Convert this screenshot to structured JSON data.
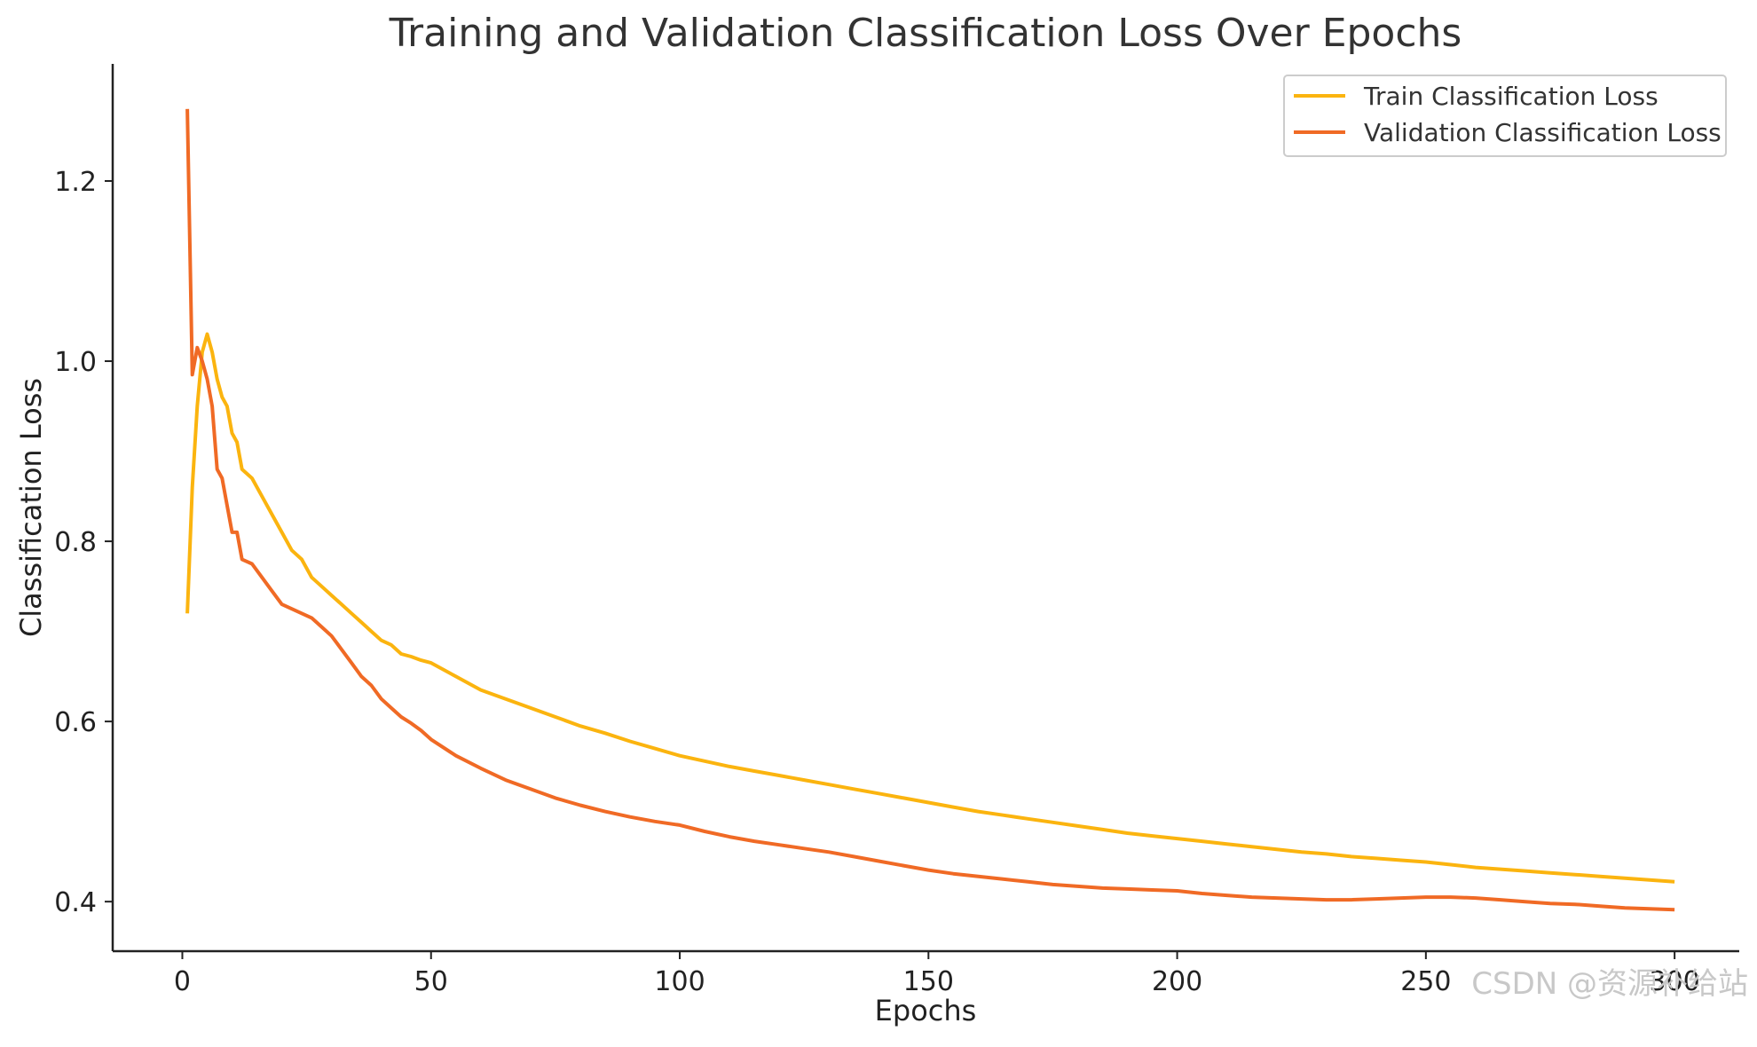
{
  "chart_data": {
    "type": "line",
    "title": "Training and Validation Classification Loss Over Epochs",
    "xlabel": "Epochs",
    "ylabel": "Classification Loss",
    "xlim": [
      -14,
      313
    ],
    "ylim": [
      0.345,
      1.33
    ],
    "xticks": [
      0,
      50,
      100,
      150,
      200,
      250,
      300
    ],
    "yticks": [
      0.4,
      0.6,
      0.8,
      1.0,
      1.2
    ],
    "ytick_labels": [
      "0.4",
      "0.6",
      "0.8",
      "1.0",
      "1.2"
    ],
    "grid": false,
    "legend_position": "top-right",
    "series": [
      {
        "name": "Train Classification Loss",
        "color": "#FBB40F",
        "points": [
          [
            1,
            0.72
          ],
          [
            2,
            0.86
          ],
          [
            3,
            0.95
          ],
          [
            4,
            1.01
          ],
          [
            5,
            1.03
          ],
          [
            6,
            1.01
          ],
          [
            7,
            0.98
          ],
          [
            8,
            0.96
          ],
          [
            9,
            0.95
          ],
          [
            10,
            0.92
          ],
          [
            11,
            0.91
          ],
          [
            12,
            0.88
          ],
          [
            14,
            0.87
          ],
          [
            16,
            0.85
          ],
          [
            18,
            0.83
          ],
          [
            20,
            0.81
          ],
          [
            22,
            0.79
          ],
          [
            24,
            0.78
          ],
          [
            26,
            0.76
          ],
          [
            28,
            0.75
          ],
          [
            30,
            0.74
          ],
          [
            32,
            0.73
          ],
          [
            34,
            0.72
          ],
          [
            36,
            0.71
          ],
          [
            38,
            0.7
          ],
          [
            40,
            0.69
          ],
          [
            42,
            0.685
          ],
          [
            44,
            0.675
          ],
          [
            46,
            0.672
          ],
          [
            48,
            0.668
          ],
          [
            50,
            0.665
          ],
          [
            55,
            0.65
          ],
          [
            60,
            0.635
          ],
          [
            65,
            0.625
          ],
          [
            70,
            0.615
          ],
          [
            75,
            0.605
          ],
          [
            80,
            0.595
          ],
          [
            85,
            0.587
          ],
          [
            90,
            0.578
          ],
          [
            95,
            0.57
          ],
          [
            100,
            0.562
          ],
          [
            105,
            0.556
          ],
          [
            110,
            0.55
          ],
          [
            115,
            0.545
          ],
          [
            120,
            0.54
          ],
          [
            125,
            0.535
          ],
          [
            130,
            0.53
          ],
          [
            135,
            0.525
          ],
          [
            140,
            0.52
          ],
          [
            145,
            0.515
          ],
          [
            150,
            0.51
          ],
          [
            155,
            0.505
          ],
          [
            160,
            0.5
          ],
          [
            165,
            0.496
          ],
          [
            170,
            0.492
          ],
          [
            175,
            0.488
          ],
          [
            180,
            0.484
          ],
          [
            185,
            0.48
          ],
          [
            190,
            0.476
          ],
          [
            195,
            0.473
          ],
          [
            200,
            0.47
          ],
          [
            205,
            0.467
          ],
          [
            210,
            0.464
          ],
          [
            215,
            0.461
          ],
          [
            220,
            0.458
          ],
          [
            225,
            0.455
          ],
          [
            230,
            0.453
          ],
          [
            235,
            0.45
          ],
          [
            240,
            0.448
          ],
          [
            245,
            0.446
          ],
          [
            250,
            0.444
          ],
          [
            255,
            0.441
          ],
          [
            260,
            0.438
          ],
          [
            265,
            0.436
          ],
          [
            270,
            0.434
          ],
          [
            275,
            0.432
          ],
          [
            280,
            0.43
          ],
          [
            285,
            0.428
          ],
          [
            290,
            0.426
          ],
          [
            295,
            0.424
          ],
          [
            300,
            0.422
          ]
        ]
      },
      {
        "name": "Validation Classification Loss",
        "color": "#F06A25",
        "points": [
          [
            1,
            1.28
          ],
          [
            2,
            0.985
          ],
          [
            3,
            1.015
          ],
          [
            4,
            1.0
          ],
          [
            5,
            0.98
          ],
          [
            6,
            0.95
          ],
          [
            7,
            0.88
          ],
          [
            8,
            0.87
          ],
          [
            9,
            0.84
          ],
          [
            10,
            0.81
          ],
          [
            11,
            0.81
          ],
          [
            12,
            0.78
          ],
          [
            14,
            0.775
          ],
          [
            16,
            0.76
          ],
          [
            18,
            0.745
          ],
          [
            20,
            0.73
          ],
          [
            22,
            0.725
          ],
          [
            24,
            0.72
          ],
          [
            26,
            0.715
          ],
          [
            28,
            0.705
          ],
          [
            30,
            0.695
          ],
          [
            32,
            0.68
          ],
          [
            34,
            0.665
          ],
          [
            36,
            0.65
          ],
          [
            38,
            0.64
          ],
          [
            40,
            0.625
          ],
          [
            42,
            0.615
          ],
          [
            44,
            0.605
          ],
          [
            46,
            0.598
          ],
          [
            48,
            0.59
          ],
          [
            50,
            0.58
          ],
          [
            55,
            0.562
          ],
          [
            60,
            0.548
          ],
          [
            65,
            0.535
          ],
          [
            70,
            0.525
          ],
          [
            75,
            0.515
          ],
          [
            80,
            0.507
          ],
          [
            85,
            0.5
          ],
          [
            90,
            0.494
          ],
          [
            95,
            0.489
          ],
          [
            100,
            0.485
          ],
          [
            105,
            0.478
          ],
          [
            110,
            0.472
          ],
          [
            115,
            0.467
          ],
          [
            120,
            0.463
          ],
          [
            125,
            0.459
          ],
          [
            130,
            0.455
          ],
          [
            135,
            0.45
          ],
          [
            140,
            0.445
          ],
          [
            145,
            0.44
          ],
          [
            150,
            0.435
          ],
          [
            155,
            0.431
          ],
          [
            160,
            0.428
          ],
          [
            165,
            0.425
          ],
          [
            170,
            0.422
          ],
          [
            175,
            0.419
          ],
          [
            180,
            0.417
          ],
          [
            185,
            0.415
          ],
          [
            190,
            0.414
          ],
          [
            195,
            0.413
          ],
          [
            200,
            0.412
          ],
          [
            205,
            0.409
          ],
          [
            210,
            0.407
          ],
          [
            215,
            0.405
          ],
          [
            220,
            0.404
          ],
          [
            225,
            0.403
          ],
          [
            230,
            0.402
          ],
          [
            235,
            0.402
          ],
          [
            240,
            0.403
          ],
          [
            245,
            0.404
          ],
          [
            250,
            0.405
          ],
          [
            255,
            0.405
          ],
          [
            260,
            0.404
          ],
          [
            265,
            0.402
          ],
          [
            270,
            0.4
          ],
          [
            275,
            0.398
          ],
          [
            280,
            0.397
          ],
          [
            285,
            0.395
          ],
          [
            290,
            0.393
          ],
          [
            295,
            0.392
          ],
          [
            300,
            0.391
          ]
        ]
      }
    ]
  },
  "watermark": "CSDN @资源补给站"
}
